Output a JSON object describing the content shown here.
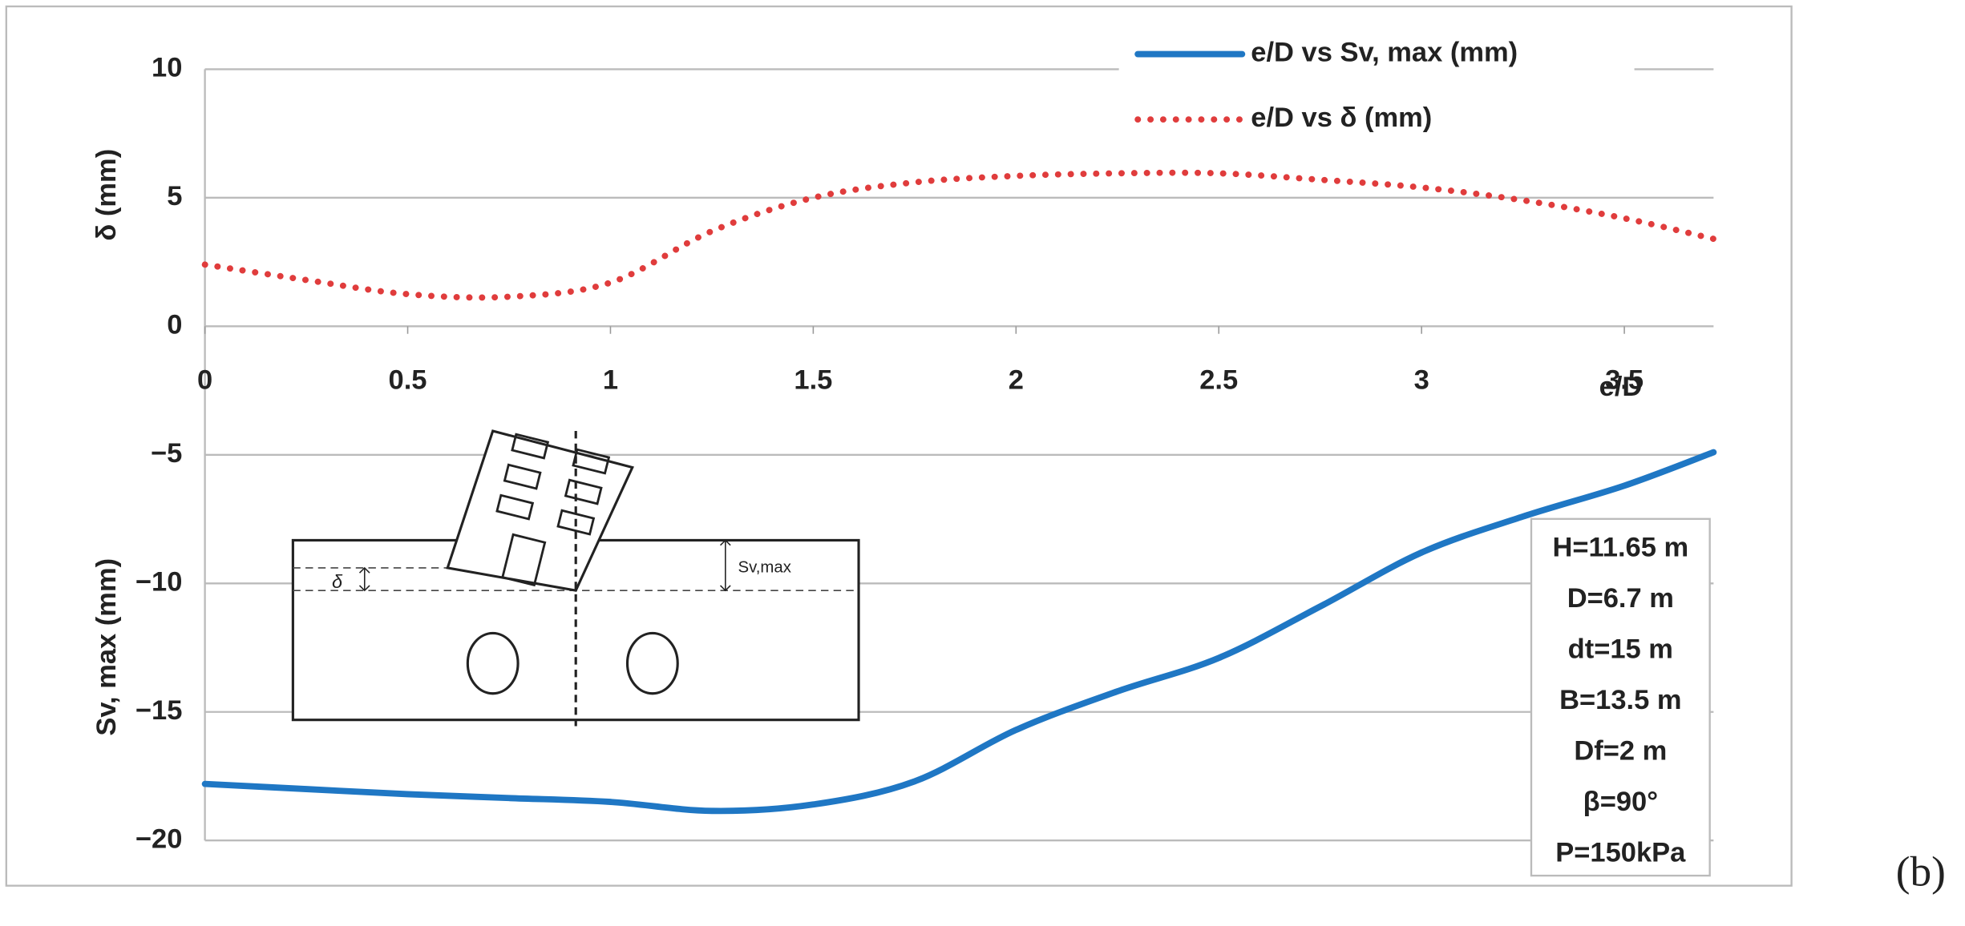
{
  "chart_data": {
    "type": "line",
    "x_label": "e/D",
    "y_label_upper": "δ (mm)",
    "y_label_lower": "Sv, max (mm)",
    "xlim": [
      0,
      3.72
    ],
    "xticks": [
      0,
      0.5,
      1,
      1.5,
      2,
      2.5,
      3,
      3.5
    ],
    "ylim": [
      -20,
      10
    ],
    "yticks": [
      {
        "value": -20,
        "label": "−20"
      },
      {
        "value": -15,
        "label": "−15"
      },
      {
        "value": -10,
        "label": "−10"
      },
      {
        "value": -5,
        "label": "−5"
      },
      0,
      5,
      10
    ],
    "grid": true,
    "legend": "top-right",
    "x": [
      0,
      0.25,
      0.5,
      0.75,
      1,
      1.25,
      1.5,
      1.75,
      2,
      2.25,
      2.5,
      2.75,
      3,
      3.25,
      3.5,
      3.72
    ],
    "series": [
      {
        "name": "e/D vs Sv, max (mm)",
        "color": "#1f77c4",
        "style": "solid",
        "values": [
          -17.8,
          -18.0,
          -18.2,
          -18.35,
          -18.5,
          -18.85,
          -18.6,
          -17.7,
          -15.7,
          -14.2,
          -12.9,
          -10.9,
          -8.8,
          -7.4,
          -6.2,
          -4.9
        ]
      },
      {
        "name": "e/D vs δ (mm)",
        "color": "#e03c3c",
        "style": "dotted",
        "values": [
          2.4,
          1.8,
          1.25,
          1.15,
          1.7,
          3.7,
          5.0,
          5.6,
          5.85,
          5.95,
          5.95,
          5.7,
          5.4,
          4.9,
          4.2,
          3.4
        ]
      }
    ],
    "annotations": [
      "δ",
      "Sv,max"
    ],
    "parameters": [
      "H=11.65 m",
      "D=6.7 m",
      "dt=15 m",
      "B=13.5 m",
      "Df=2 m",
      "β=90°",
      "P=150kPa"
    ],
    "panel_label": "(b)"
  }
}
